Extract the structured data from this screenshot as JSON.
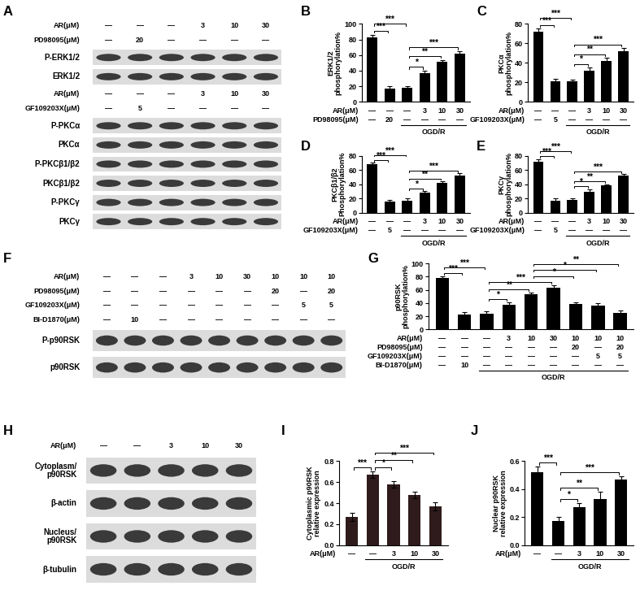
{
  "blots": [
    {
      "panel": "A",
      "sections": [
        {
          "conditions": [
            {
              "label": "AR(μM)",
              "lanes": [
                "—",
                "—",
                "—",
                "3",
                "10",
                "30"
              ]
            },
            {
              "label": "PD98095(μM)",
              "lanes": [
                "—",
                "20",
                "—",
                "—",
                "—",
                "—"
              ]
            }
          ],
          "bands": [
            "P-ERK1/2",
            "ERK1/2"
          ]
        },
        {
          "conditions": [
            {
              "label": "AR(μM)",
              "lanes": [
                "—",
                "—",
                "—",
                "3",
                "10",
                "30"
              ]
            },
            {
              "label": "GF109203X(μM)",
              "lanes": [
                "—",
                "5",
                "—",
                "—",
                "—",
                "—"
              ]
            }
          ],
          "bands": [
            "P-PKCα",
            "PKCα",
            "P-PKCβ1/β2",
            "PKCβ1/β2",
            "P-PKCγ",
            "PKCγ"
          ]
        }
      ]
    },
    {
      "panel": "F",
      "sections": [
        {
          "conditions": [
            {
              "label": "AR(μM)",
              "lanes": [
                "—",
                "—",
                "—",
                "3",
                "10",
                "30",
                "10",
                "10",
                "10"
              ]
            },
            {
              "label": "PD98095(μM)",
              "lanes": [
                "—",
                "—",
                "—",
                "—",
                "—",
                "—",
                "20",
                "—",
                "20"
              ]
            },
            {
              "label": "GF109203X(μM)",
              "lanes": [
                "—",
                "—",
                "—",
                "—",
                "—",
                "—",
                "—",
                "5",
                "5"
              ]
            },
            {
              "label": "BI-D1870(μM)",
              "lanes": [
                "—",
                "10",
                "—",
                "—",
                "—",
                "—",
                "—",
                "—",
                "—"
              ]
            }
          ],
          "bands": [
            "P-p90RSK",
            "p90RSK"
          ]
        }
      ]
    },
    {
      "panel": "H",
      "sections": [
        {
          "conditions": [
            {
              "label": "AR(μM)",
              "lanes": [
                "—",
                "—",
                "3",
                "10",
                "30"
              ]
            }
          ],
          "bands": [
            "Cytoplasm/\np90RSK",
            "β-actin",
            "Nucleus/\np90RSK",
            "β-tubulin"
          ]
        }
      ]
    }
  ],
  "chart_data": [
    {
      "panel": "B",
      "type": "bar",
      "ylabel": "ERK1/2\nphosphorylation%",
      "ylim": [
        0,
        100
      ],
      "yticks": [
        0,
        20,
        40,
        60,
        80,
        100
      ],
      "tick_labels": "y",
      "color": "#000000",
      "values": [
        83,
        17,
        18,
        37,
        51,
        62
      ],
      "errors": [
        3,
        3,
        2,
        3,
        3,
        3
      ],
      "conditions": [
        {
          "label": "AR(μM)",
          "lanes": [
            "—",
            "—",
            "—",
            "3",
            "10",
            "30"
          ]
        },
        {
          "label": "PD98095(μM)",
          "lanes": [
            "—",
            "20",
            "—",
            "—",
            "—",
            "—"
          ]
        }
      ],
      "group": {
        "label": "OGD/R",
        "lanes": [
          2,
          3,
          4,
          5
        ]
      },
      "significance": [
        {
          "pair": [
            0,
            1
          ],
          "label": "***"
        },
        {
          "pair": [
            0,
            2
          ],
          "label": "***"
        },
        {
          "pair": [
            2,
            3
          ],
          "label": "*"
        },
        {
          "pair": [
            2,
            4
          ],
          "label": "**"
        },
        {
          "pair": [
            2,
            5
          ],
          "label": "***"
        }
      ]
    },
    {
      "panel": "C",
      "type": "bar",
      "ylabel": "PKCα\nphosphorylation%",
      "ylim": [
        0,
        80
      ],
      "yticks": [
        0,
        20,
        40,
        60,
        80
      ],
      "tick_labels": "y",
      "color": "#000000",
      "values": [
        72,
        21,
        21,
        32,
        42,
        52
      ],
      "errors": [
        3,
        3,
        2,
        3,
        3,
        3
      ],
      "conditions": [
        {
          "label": "AR(μM)",
          "lanes": [
            "—",
            "—",
            "—",
            "3",
            "10",
            "30"
          ]
        },
        {
          "label": "GF109203X(μM)",
          "lanes": [
            "—",
            "5",
            "—",
            "—",
            "—",
            "—"
          ]
        }
      ],
      "group": {
        "label": "OGD/R",
        "lanes": [
          2,
          3,
          4,
          5
        ]
      },
      "significance": [
        {
          "pair": [
            0,
            1
          ],
          "label": "***"
        },
        {
          "pair": [
            0,
            2
          ],
          "label": "***"
        },
        {
          "pair": [
            2,
            3
          ],
          "label": "*"
        },
        {
          "pair": [
            2,
            4
          ],
          "label": "**"
        },
        {
          "pair": [
            2,
            5
          ],
          "label": "***"
        }
      ]
    },
    {
      "panel": "D",
      "type": "bar",
      "ylabel": "PKCβ1/β2\nPhosphorylation%",
      "ylim": [
        0,
        80
      ],
      "yticks": [
        0,
        20,
        40,
        60,
        80
      ],
      "tick_labels": "y",
      "color": "#000000",
      "values": [
        68,
        16,
        17,
        28,
        42,
        52
      ],
      "errors": [
        2,
        2,
        3,
        2,
        2,
        3
      ],
      "conditions": [
        {
          "label": "AR(μM)",
          "lanes": [
            "—",
            "—",
            "—",
            "3",
            "10",
            "30"
          ]
        },
        {
          "label": "GF109203X(μM)",
          "lanes": [
            "—",
            "5",
            "—",
            "—",
            "—",
            "—"
          ]
        }
      ],
      "group": {
        "label": "OGD/R",
        "lanes": [
          2,
          3,
          4,
          5
        ]
      },
      "significance": [
        {
          "pair": [
            0,
            1
          ],
          "label": "***"
        },
        {
          "pair": [
            0,
            2
          ],
          "label": "***"
        },
        {
          "pair": [
            2,
            3
          ],
          "label": "*"
        },
        {
          "pair": [
            2,
            4
          ],
          "label": "**"
        },
        {
          "pair": [
            2,
            5
          ],
          "label": "***"
        }
      ]
    },
    {
      "panel": "E",
      "type": "bar",
      "ylabel": "PKCγ\nphosphorylation%",
      "ylim": [
        0,
        80
      ],
      "yticks": [
        0,
        20,
        40,
        60,
        80
      ],
      "tick_labels": "y",
      "color": "#000000",
      "values": [
        72,
        17,
        18,
        29,
        38,
        52
      ],
      "errors": [
        3,
        3,
        2,
        4,
        2,
        2
      ],
      "conditions": [
        {
          "label": "AR(μM)",
          "lanes": [
            "—",
            "—",
            "—",
            "3",
            "10",
            "30"
          ]
        },
        {
          "label": "GF109203X(μM)",
          "lanes": [
            "—",
            "5",
            "—",
            "—",
            "—",
            "—"
          ]
        }
      ],
      "group": {
        "label": "OGD/R",
        "lanes": [
          2,
          3,
          4,
          5
        ]
      },
      "significance": [
        {
          "pair": [
            0,
            1
          ],
          "label": "***"
        },
        {
          "pair": [
            0,
            2
          ],
          "label": "***"
        },
        {
          "pair": [
            2,
            3
          ],
          "label": "*"
        },
        {
          "pair": [
            2,
            4
          ],
          "label": "**"
        },
        {
          "pair": [
            2,
            5
          ],
          "label": "***"
        }
      ]
    },
    {
      "panel": "G",
      "type": "bar",
      "ylabel": "p90RSK\nphosphorylation%",
      "ylim": [
        0,
        100
      ],
      "yticks": [
        0,
        20,
        40,
        60,
        80,
        100
      ],
      "tick_labels": "y",
      "color": "#000000",
      "values": [
        78,
        23,
        24,
        37,
        53,
        63,
        39,
        36,
        25
      ],
      "errors": [
        2,
        3,
        3,
        4,
        3,
        4,
        2,
        4,
        4
      ],
      "conditions": [
        {
          "label": "AR(μM)",
          "lanes": [
            "—",
            "—",
            "—",
            "3",
            "10",
            "30",
            "10",
            "10",
            "10"
          ]
        },
        {
          "label": "PD98095(μM)",
          "lanes": [
            "—",
            "—",
            "—",
            "—",
            "—",
            "—",
            "20",
            "—",
            "20"
          ]
        },
        {
          "label": "GF109203X(μM)",
          "lanes": [
            "—",
            "—",
            "—",
            "—",
            "—",
            "—",
            "—",
            "5",
            "5"
          ]
        },
        {
          "label": "BI-D1870(μM)",
          "lanes": [
            "—",
            "10",
            "—",
            "—",
            "—",
            "—",
            "—",
            "—",
            "—"
          ]
        }
      ],
      "group": {
        "label": "OGD/R",
        "lanes": [
          2,
          3,
          4,
          5,
          6,
          7,
          8
        ]
      },
      "significance": [
        {
          "pair": [
            0,
            1
          ],
          "label": "***"
        },
        {
          "pair": [
            0,
            2
          ],
          "label": "***"
        },
        {
          "pair": [
            2,
            3
          ],
          "label": "*"
        },
        {
          "pair": [
            2,
            4
          ],
          "label": "**"
        },
        {
          "pair": [
            2,
            5
          ],
          "label": "***"
        },
        {
          "pair": [
            4,
            6
          ],
          "label": "*"
        },
        {
          "pair": [
            4,
            7
          ],
          "label": "*"
        },
        {
          "pair": [
            4,
            8
          ],
          "label": "**"
        }
      ]
    },
    {
      "panel": "I",
      "type": "bar",
      "ylabel": "Cytoplasmic p90RSK\nrelative expression",
      "ylim": [
        0,
        0.8
      ],
      "yticks": [
        {
          "value": 0,
          "label": "0.0"
        },
        0.2,
        0.4,
        0.6,
        0.8
      ],
      "tick_labels": "y",
      "color": "#2f1b1b",
      "values": [
        0.27,
        0.67,
        0.58,
        0.48,
        0.37
      ],
      "errors": [
        0.04,
        0.03,
        0.03,
        0.03,
        0.04
      ],
      "conditions": [
        {
          "label": "AR(μM)",
          "lanes": [
            "—",
            "—",
            "3",
            "10",
            "30"
          ]
        }
      ],
      "group": {
        "label": "OGD/R",
        "lanes": [
          1,
          2,
          3,
          4
        ]
      },
      "significance": [
        {
          "pair": [
            0,
            1
          ],
          "label": "***"
        },
        {
          "pair": [
            1,
            2
          ],
          "label": "*"
        },
        {
          "pair": [
            1,
            3
          ],
          "label": "**"
        },
        {
          "pair": [
            1,
            4
          ],
          "label": "***"
        }
      ]
    },
    {
      "panel": "J",
      "type": "bar",
      "ylabel": "Nuclear p90RSK\nrelative expression",
      "ylim": [
        0,
        0.6
      ],
      "yticks": [
        {
          "value": 0,
          "label": "0.0"
        },
        0.2,
        0.4,
        0.6
      ],
      "tick_labels": "y",
      "color": "#000000",
      "values": [
        0.52,
        0.17,
        0.27,
        0.33,
        0.47
      ],
      "errors": [
        0.04,
        0.03,
        0.03,
        0.05,
        0.02
      ],
      "conditions": [
        {
          "label": "AR(μM)",
          "lanes": [
            "—",
            "—",
            "3",
            "10",
            "30"
          ]
        }
      ],
      "group": {
        "label": "OGD/R",
        "lanes": [
          1,
          2,
          3,
          4
        ]
      },
      "significance": [
        {
          "pair": [
            0,
            1
          ],
          "label": "***"
        },
        {
          "pair": [
            1,
            2
          ],
          "label": "*"
        },
        {
          "pair": [
            1,
            3
          ],
          "label": "**"
        },
        {
          "pair": [
            1,
            4
          ],
          "label": "***"
        }
      ]
    }
  ]
}
